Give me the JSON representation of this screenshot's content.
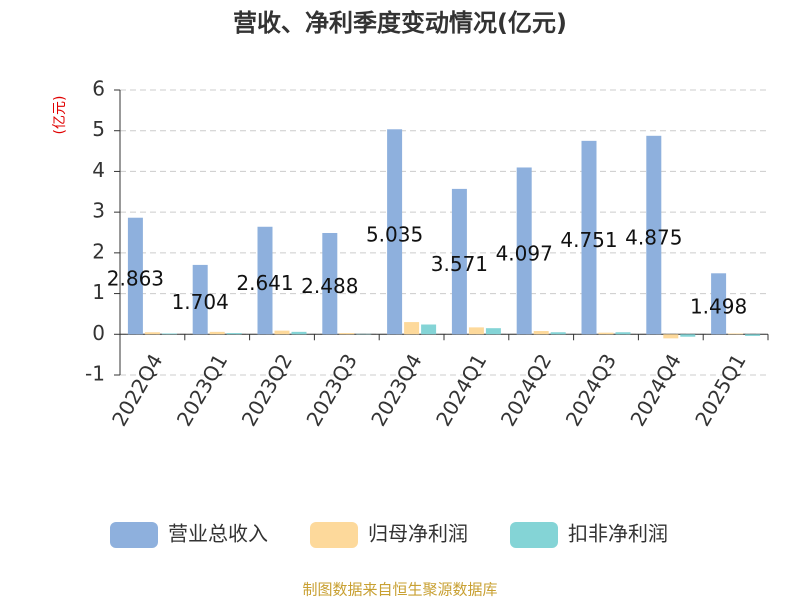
{
  "chart_data": {
    "type": "bar",
    "title": "营收、净利季度变动情况(亿元)",
    "y_label": "(亿元)",
    "source": "制图数据来自恒生聚源数据库",
    "categories": [
      "2022Q4",
      "2023Q1",
      "2023Q2",
      "2023Q3",
      "2023Q4",
      "2024Q1",
      "2024Q2",
      "2024Q3",
      "2024Q4",
      "2025Q1"
    ],
    "series": [
      {
        "name": "营业总收入",
        "color": "#8eb0dd",
        "values": [
          2.863,
          1.704,
          2.641,
          2.488,
          5.035,
          3.571,
          4.097,
          4.751,
          4.875,
          1.498
        ],
        "show_labels": true
      },
      {
        "name": "归母净利润",
        "color": "#fdd99b",
        "values": [
          0.05,
          0.06,
          0.09,
          0.03,
          0.3,
          0.17,
          0.08,
          0.04,
          -0.1,
          0.02
        ]
      },
      {
        "name": "扣非净利润",
        "color": "#84d4d6",
        "values": [
          0.02,
          0.03,
          0.06,
          0.01,
          0.24,
          0.15,
          0.05,
          0.05,
          -0.06,
          -0.04
        ]
      }
    ],
    "ylim": [
      -1,
      6
    ],
    "yticks": [
      -1,
      0,
      1,
      2,
      3,
      4,
      5,
      6
    ],
    "grid": true
  }
}
